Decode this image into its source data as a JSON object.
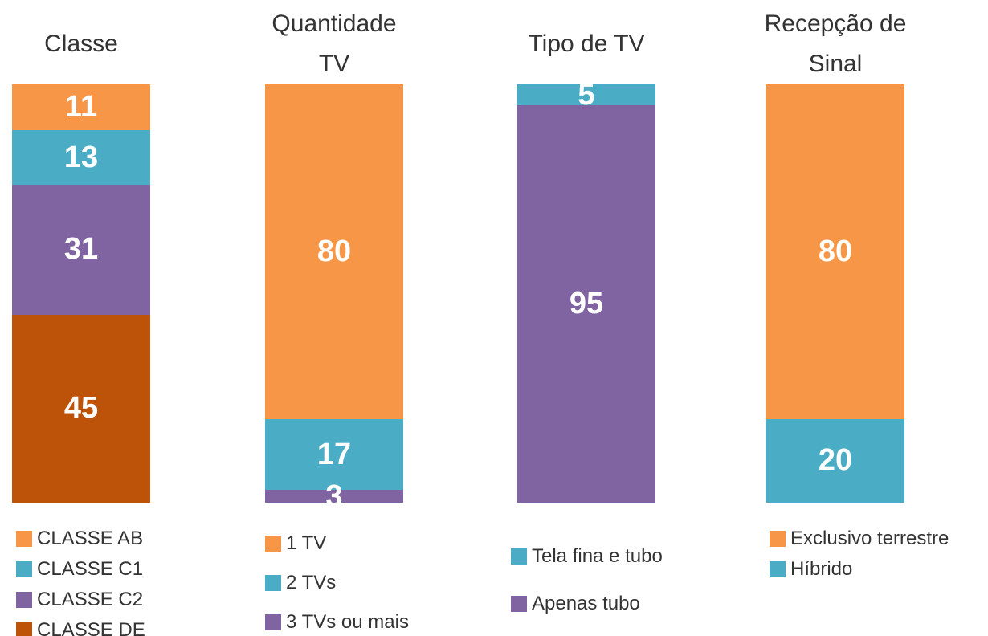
{
  "chart_data": [
    {
      "type": "bar",
      "stacked": true,
      "title": "Classe",
      "series": [
        {
          "name": "CLASSE AB",
          "color": "#f79646",
          "values": [
            11
          ]
        },
        {
          "name": "CLASSE C1",
          "color": "#4bacc6",
          "values": [
            13
          ]
        },
        {
          "name": "CLASSE C2",
          "color": "#8064a2",
          "values": [
            31
          ]
        },
        {
          "name": "CLASSE DE",
          "color": "#bd5309",
          "values": [
            45
          ]
        }
      ]
    },
    {
      "type": "bar",
      "stacked": true,
      "title": "Quantidade TV",
      "series": [
        {
          "name": "1 TV",
          "color": "#f79646",
          "values": [
            80
          ]
        },
        {
          "name": "2 TVs",
          "color": "#4bacc6",
          "values": [
            17
          ]
        },
        {
          "name": "3 TVs ou mais",
          "color": "#8064a2",
          "values": [
            3
          ]
        }
      ]
    },
    {
      "type": "bar",
      "stacked": true,
      "title": "Tipo de TV",
      "series": [
        {
          "name": "Tela fina e tubo",
          "color": "#4bacc6",
          "values": [
            5
          ]
        },
        {
          "name": "Apenas tubo",
          "color": "#8064a2",
          "values": [
            95
          ]
        }
      ]
    },
    {
      "type": "bar",
      "stacked": true,
      "title": "Recepção de Sinal",
      "series": [
        {
          "name": "Exclusivo terrestre",
          "color": "#f79646",
          "values": [
            80
          ]
        },
        {
          "name": "Híbrido",
          "color": "#4bacc6",
          "values": [
            20
          ]
        }
      ]
    }
  ]
}
